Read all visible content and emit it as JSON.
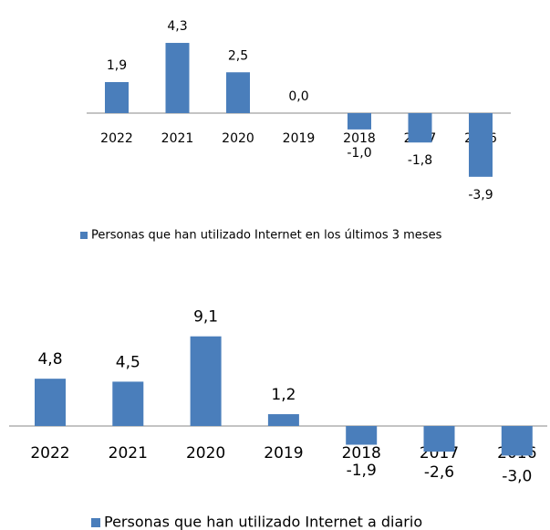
{
  "chart_data": [
    {
      "type": "bar",
      "categories": [
        "2022",
        "2021",
        "2020",
        "2019",
        "2018",
        "2017",
        "2016"
      ],
      "series": [
        {
          "name": "Personas que han utilizado Internet en los últimos 3 meses",
          "color": "#4a7ebb",
          "values": [
            1.9,
            4.3,
            2.5,
            0.0,
            -1.0,
            -1.8,
            -3.9
          ],
          "value_labels": [
            "1,9",
            "4,3",
            "2,5",
            "0,0",
            "-1,0",
            "-1,8",
            "-3,9"
          ]
        }
      ]
    },
    {
      "type": "bar",
      "categories": [
        "2022",
        "2021",
        "2020",
        "2019",
        "2018",
        "2017",
        "2016"
      ],
      "series": [
        {
          "name": "Personas que han utilizado Internet a diario",
          "color": "#4a7ebb",
          "values": [
            4.8,
            4.5,
            9.1,
            1.2,
            -1.9,
            -2.6,
            -3.0
          ],
          "value_labels": [
            "4,8",
            "4,5",
            "9,1",
            "1,2",
            "-1,9",
            "-2,6",
            "-3,0"
          ]
        }
      ]
    }
  ]
}
